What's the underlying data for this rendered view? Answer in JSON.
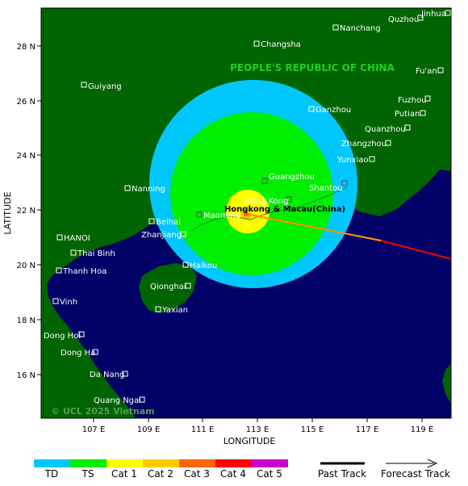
{
  "map": {
    "country_label": "PEOPLE'S REPUBLIC OF CHINA",
    "country_label_color": "#22cc22",
    "storm_point_label": "Hongkong & Macau(China)",
    "watermark": "© UCL 2025 Vietnam",
    "colors": {
      "ocean": "#000066",
      "land": "#006400",
      "td_ring": "#00c8ff",
      "ts_ring": "#00ee00",
      "cat1_ring": "#ffff00",
      "cat2_ring": "#ffcc00"
    }
  },
  "axes": {
    "xlabel": "LONGITUDE",
    "ylabel": "LATITUDE",
    "x_ticks": [
      "107 E",
      "109 E",
      "111 E",
      "113 E",
      "115 E",
      "117 E",
      "119 E"
    ],
    "y_ticks": [
      "28 N",
      "26 N",
      "24 N",
      "22 N",
      "20 N",
      "18 N",
      "16 N"
    ]
  },
  "cities": [
    {
      "name": "Quzhou"
    },
    {
      "name": "Jinhua"
    },
    {
      "name": "Nanchang"
    },
    {
      "name": "Changsha"
    },
    {
      "name": "Fu'an"
    },
    {
      "name": "Guiyang"
    },
    {
      "name": "Ganzhou"
    },
    {
      "name": "Fuzhou"
    },
    {
      "name": "Putian"
    },
    {
      "name": "Quanzhou"
    },
    {
      "name": "Zhangzhou"
    },
    {
      "name": "Yunxiao"
    },
    {
      "name": "Guangzhou"
    },
    {
      "name": "Shantou"
    },
    {
      "name": "Nanning"
    },
    {
      "name": "Hong Kong"
    },
    {
      "name": "Maoming"
    },
    {
      "name": "Beihai"
    },
    {
      "name": "HANOI"
    },
    {
      "name": "Zhanjiang"
    },
    {
      "name": "Thai Binh"
    },
    {
      "name": "Haikou"
    },
    {
      "name": "Thanh Hoa"
    },
    {
      "name": "Qionghai"
    },
    {
      "name": "Vinh"
    },
    {
      "name": "Yaxian"
    },
    {
      "name": "Dong Hoi"
    },
    {
      "name": "Dong Ha"
    },
    {
      "name": "Da Nang"
    },
    {
      "name": "Quang Ngai"
    }
  ],
  "legend": {
    "categories": [
      {
        "label": "TD",
        "color": "#00c8ff"
      },
      {
        "label": "TS",
        "color": "#00ee00"
      },
      {
        "label": "Cat 1",
        "color": "#ffff00"
      },
      {
        "label": "Cat 2",
        "color": "#ffcc00"
      },
      {
        "label": "Cat 3",
        "color": "#ff6600"
      },
      {
        "label": "Cat 4",
        "color": "#ff0000"
      },
      {
        "label": "Cat 5",
        "color": "#cc00cc"
      }
    ],
    "past_track_label": "Past Track",
    "forecast_track_label": "Forecast Track"
  }
}
